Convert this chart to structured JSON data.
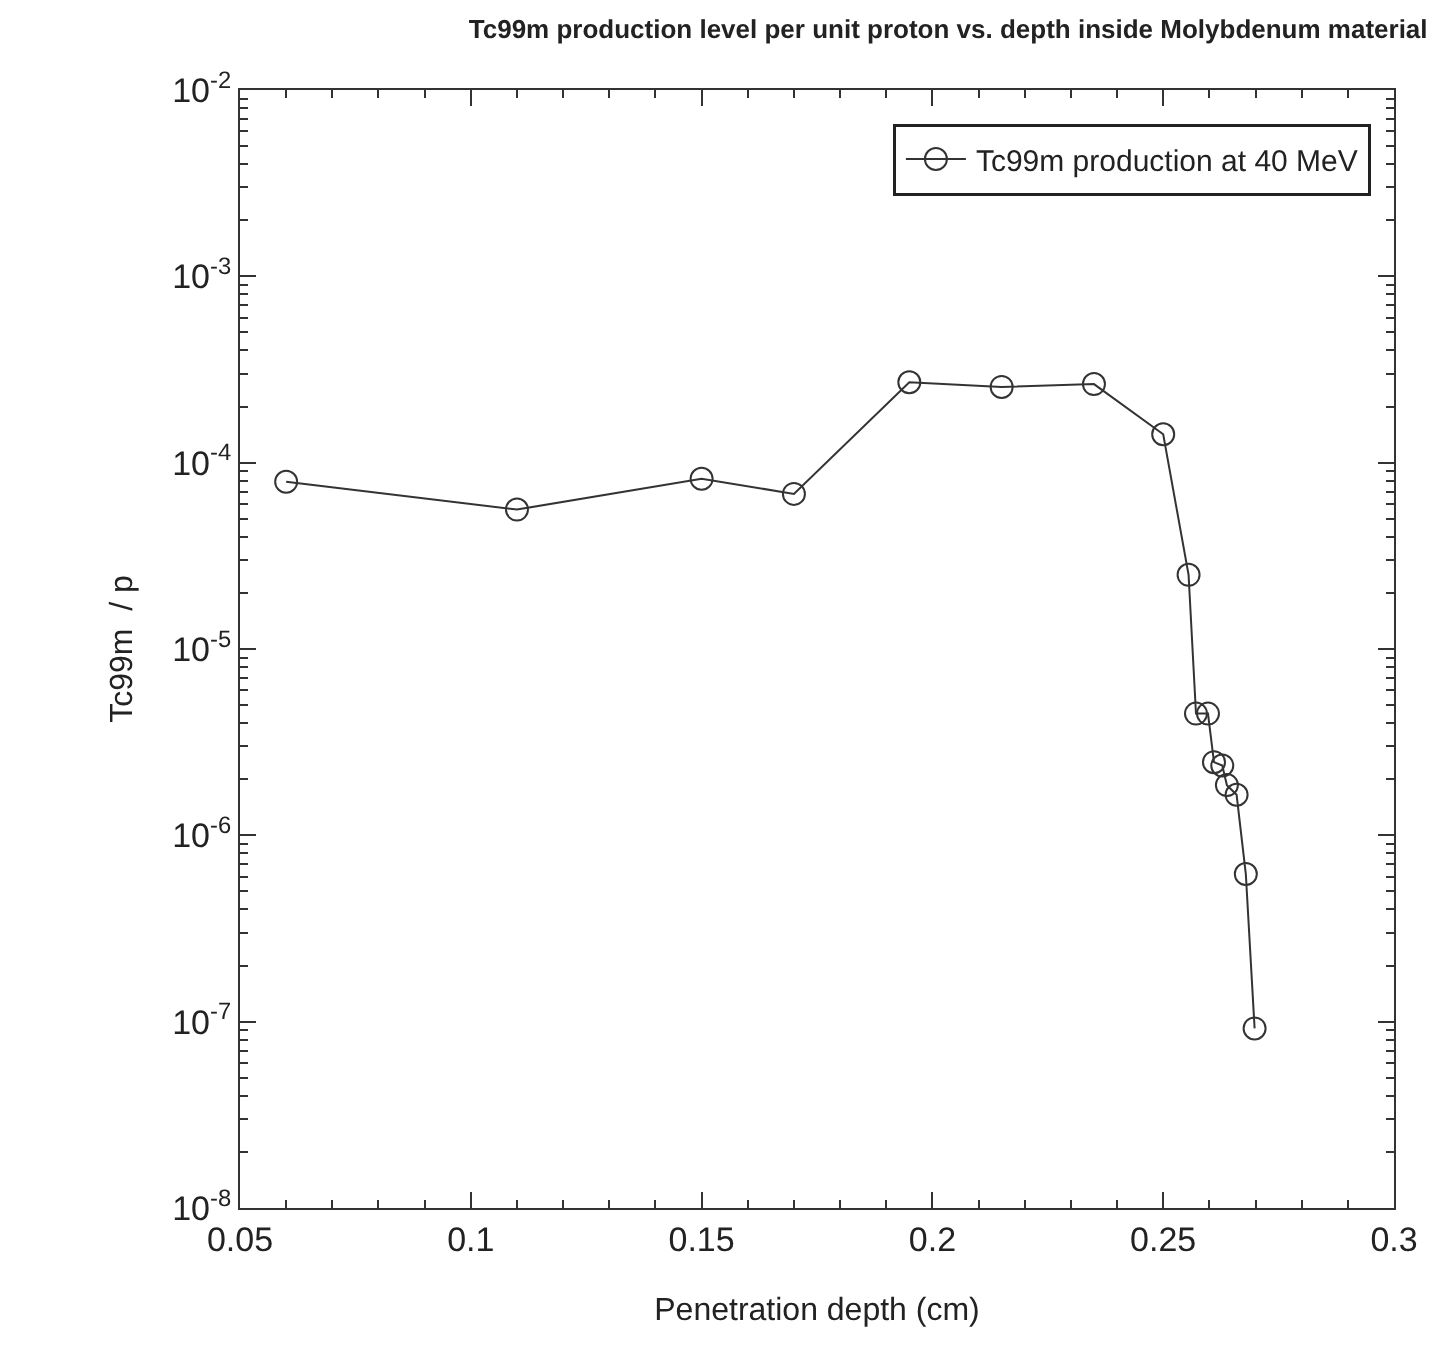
{
  "chart_data": {
    "type": "line",
    "title": "Tc99m production level per unit proton vs. depth inside Molybdenum material",
    "xlabel": "Penetration depth (cm)",
    "ylabel": "Tc99m  / p",
    "log": "y",
    "legend": "top right",
    "marker": "circle",
    "line_style": "solid",
    "xlim": [
      0.05,
      0.3
    ],
    "xticks": [
      0.05,
      0.1,
      0.15,
      0.2,
      0.25,
      0.3
    ],
    "ylim": [
      1e-08,
      0.01
    ],
    "yticks": [
      {
        "value": 1e-08,
        "label": "10$^{-8}$"
      },
      {
        "value": 1e-07,
        "label": "10$^{-7}$"
      },
      {
        "value": 1e-06,
        "label": "10$^{-6}$"
      },
      {
        "value": 1e-05,
        "label": "10$^{-5}$"
      },
      {
        "value": 0.0001,
        "label": "10$^{-4}$"
      },
      {
        "value": 0.001,
        "label": "10$^{-3}$"
      },
      {
        "value": 0.01,
        "label": "10$^{-2}$"
      }
    ],
    "x": [
      0.06,
      0.11,
      0.15,
      0.17,
      0.195,
      0.215,
      0.235,
      0.25,
      0.2555,
      0.2571,
      0.2597,
      0.261,
      0.2628,
      0.2638,
      0.2659,
      0.2679,
      0.2698
    ],
    "series": [
      {
        "name": "Tc99m production at 40 MeV",
        "color": "#333333",
        "values": [
          7.9e-05,
          5.6e-05,
          8.2e-05,
          6.8e-05,
          0.00027,
          0.000255,
          0.000264,
          0.000142,
          2.5e-05,
          4.5e-06,
          4.5e-06,
          2.47e-06,
          2.37e-06,
          1.86e-06,
          1.65e-06,
          6.2e-07,
          9.2e-08
        ]
      }
    ]
  }
}
